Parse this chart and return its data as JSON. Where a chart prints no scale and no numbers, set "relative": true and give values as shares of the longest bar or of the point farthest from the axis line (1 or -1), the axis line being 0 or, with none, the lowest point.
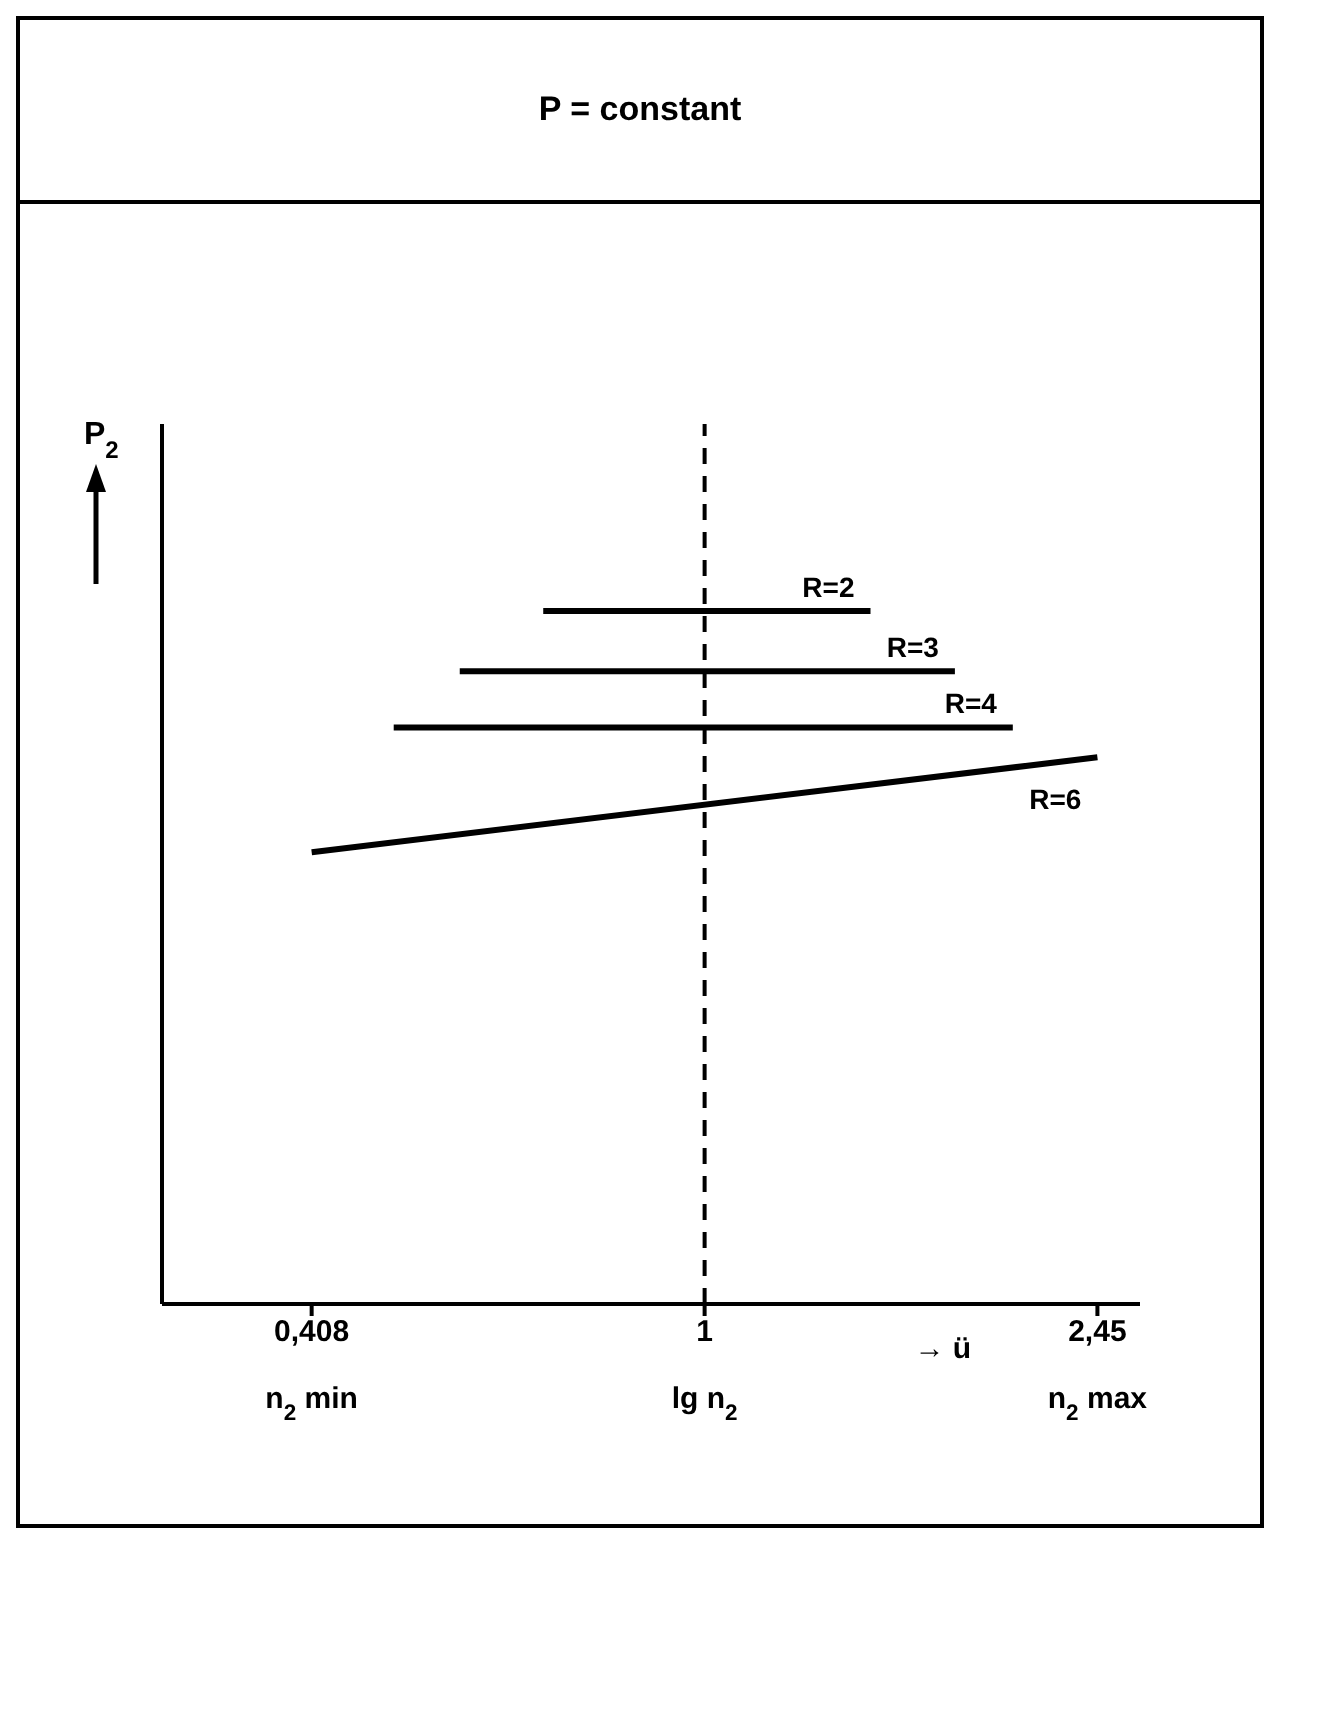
{
  "chart_data": {
    "type": "line",
    "title": "P = constant",
    "ylabel": "P$_{2}$",
    "xlabel": "lg n$_{2}$",
    "relative": true,
    "log": "x",
    "marker": "none",
    "xlim": [
      0.29,
      2.7
    ],
    "xticks": [
      {
        "value": 0.408,
        "label": "0,408"
      },
      1,
      {
        "value": 2.45,
        "label": "2,45"
      }
    ],
    "ref_lines": [
      {
        "axis": "x",
        "value": 1,
        "line_style": "dashed",
        "color": "#000000"
      }
    ],
    "annotations": [
      "n$_{2}$ min",
      "n$_{2}$ max",
      "→ ü"
    ],
    "series": [
      {
        "name": "R=2",
        "color": "#000000",
        "x": [
          0.692,
          1.46
        ],
        "values": [
          1,
          1
        ]
      },
      {
        "name": "R=3",
        "color": "#000000",
        "x": [
          0.572,
          1.77
        ],
        "values": [
          0.913,
          0.913
        ]
      },
      {
        "name": "R=4",
        "color": "#000000",
        "x": [
          0.492,
          2.02
        ],
        "values": [
          0.832,
          0.832
        ]
      },
      {
        "name": "R=6",
        "color": "#000000",
        "x": [
          0.408,
          2.45
        ],
        "values": [
          0.652,
          0.789
        ]
      }
    ]
  }
}
